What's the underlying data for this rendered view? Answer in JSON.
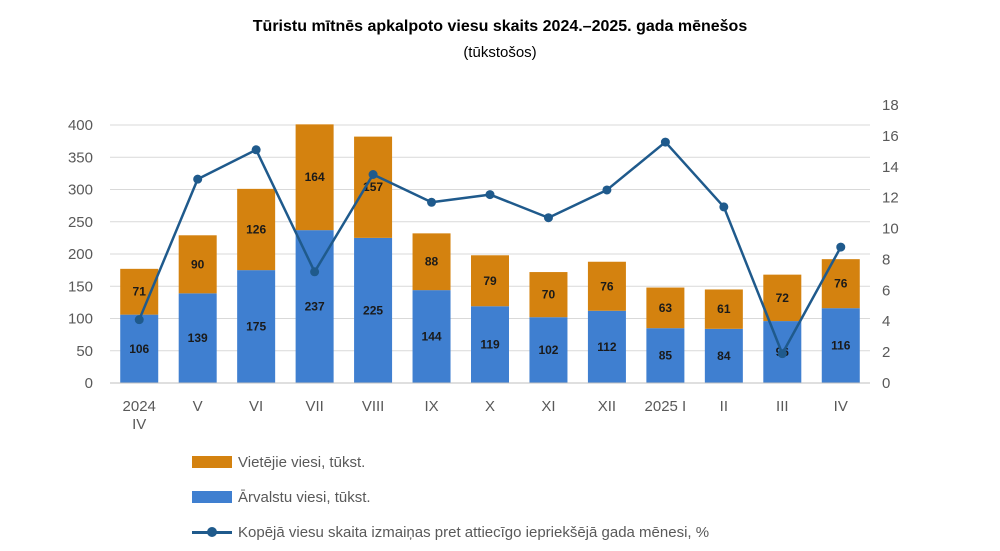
{
  "title": "Tūristu mītnēs apkalpoto viesu skaits 2024.–2025. gada mēnešos",
  "subtitle": "(tūkstošos)",
  "colors": {
    "domestic": "#D4820F",
    "foreign": "#3F7FD0",
    "line": "#1F5A8C",
    "axis_text": "#595959",
    "grid": "#D9D9D9"
  },
  "legend": {
    "domestic": "Vietējie viesi, tūkst.",
    "foreign": "Ārvalstu viesi, tūkst.",
    "change": "Kopējā viesu skaita izmaiņas pret attiecīgo iepriekšējā gada mēnesi, %"
  },
  "chart_data": {
    "type": "bar",
    "stacked": true,
    "categories": [
      [
        "2024",
        "IV"
      ],
      [
        "V"
      ],
      [
        "VI"
      ],
      [
        "VII"
      ],
      [
        "VIII"
      ],
      [
        "IX"
      ],
      [
        "X"
      ],
      [
        "XI"
      ],
      [
        "XII"
      ],
      [
        "2025 I"
      ],
      [
        "II"
      ],
      [
        "III"
      ],
      [
        "IV"
      ]
    ],
    "series": [
      {
        "name": "Ārvalstu viesi, tūkst.",
        "values": [
          106,
          139,
          175,
          237,
          225,
          144,
          119,
          102,
          112,
          85,
          84,
          96,
          116
        ]
      },
      {
        "name": "Vietējie viesi, tūkst.",
        "values": [
          71,
          90,
          126,
          164,
          157,
          88,
          79,
          70,
          76,
          63,
          61,
          72,
          76
        ]
      },
      {
        "name": "Kopējā viesu skaita izmaiņas pret attiecīgo iepriekšējā gada mēnesi, %",
        "type": "line",
        "axis": "right",
        "values": [
          4.1,
          13.2,
          15.1,
          7.2,
          13.5,
          11.7,
          12.2,
          10.7,
          12.5,
          15.6,
          11.4,
          1.9,
          8.8
        ]
      }
    ],
    "ylim": [
      0,
      400
    ],
    "yticks": [
      0,
      50,
      100,
      150,
      200,
      250,
      300,
      350,
      400
    ],
    "y2lim": [
      0,
      18
    ],
    "y2ticks": [
      0,
      2,
      4,
      6,
      8,
      10,
      12,
      14,
      16,
      18
    ],
    "grid": true,
    "legend_position": "bottom-left"
  }
}
